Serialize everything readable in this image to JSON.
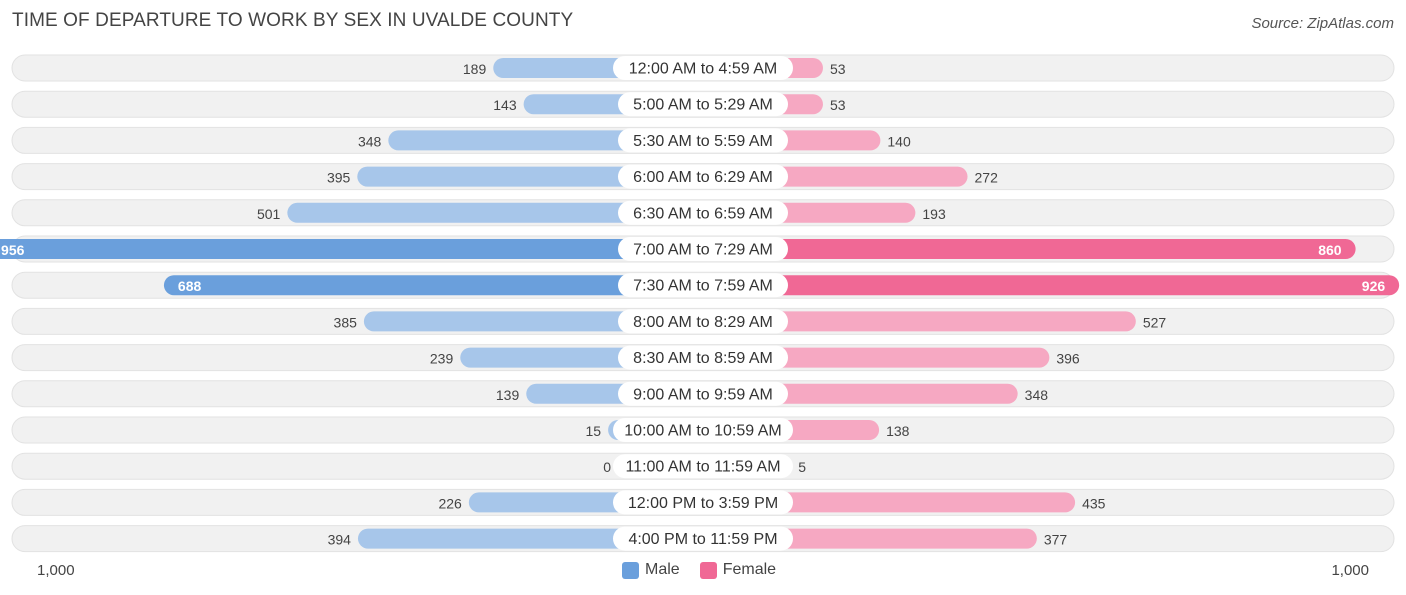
{
  "title": "TIME OF DEPARTURE TO WORK BY SEX IN UVALDE COUNTY",
  "source": "Source: ZipAtlas.com",
  "legend": {
    "male": "Male",
    "female": "Female"
  },
  "axis": {
    "left_label": "1,000",
    "right_label": "1,000"
  },
  "colors": {
    "male_dark": "#6a9fdc",
    "male_light": "#a7c6ea",
    "female_dark": "#f06895",
    "female_light": "#f6a8c2",
    "row_bg": "#f1f1f1"
  },
  "chart_data": {
    "type": "bar",
    "orientation": "horizontal-diverging",
    "title": "TIME OF DEPARTURE TO WORK BY SEX IN UVALDE COUNTY",
    "xlim": [
      -1000,
      1000
    ],
    "categories": [
      "12:00 AM to 4:59 AM",
      "5:00 AM to 5:29 AM",
      "5:30 AM to 5:59 AM",
      "6:00 AM to 6:29 AM",
      "6:30 AM to 6:59 AM",
      "7:00 AM to 7:29 AM",
      "7:30 AM to 7:59 AM",
      "8:00 AM to 8:29 AM",
      "8:30 AM to 8:59 AM",
      "9:00 AM to 9:59 AM",
      "10:00 AM to 10:59 AM",
      "11:00 AM to 11:59 AM",
      "12:00 PM to 3:59 PM",
      "4:00 PM to 11:59 PM"
    ],
    "series": [
      {
        "name": "Male",
        "values": [
          189,
          143,
          348,
          395,
          501,
          956,
          688,
          385,
          239,
          139,
          15,
          0,
          226,
          394
        ]
      },
      {
        "name": "Female",
        "values": [
          53,
          53,
          140,
          272,
          193,
          860,
          926,
          527,
          396,
          348,
          138,
          5,
          435,
          377
        ]
      }
    ]
  }
}
